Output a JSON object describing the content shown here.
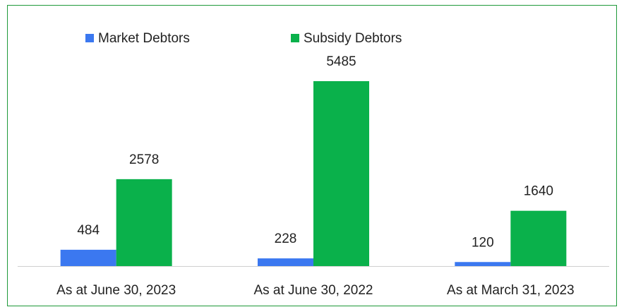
{
  "chart_data": {
    "type": "bar",
    "categories": [
      "As at June 30, 2023",
      "As at June 30, 2022",
      "As at March 31, 2023"
    ],
    "series": [
      {
        "name": "Market Debtors",
        "color": "#3b78f0",
        "values": [
          484,
          228,
          120
        ]
      },
      {
        "name": "Subsidy Debtors",
        "color": "#0ab14b",
        "values": [
          2578,
          5485,
          1640
        ]
      }
    ],
    "legend": "top"
  }
}
